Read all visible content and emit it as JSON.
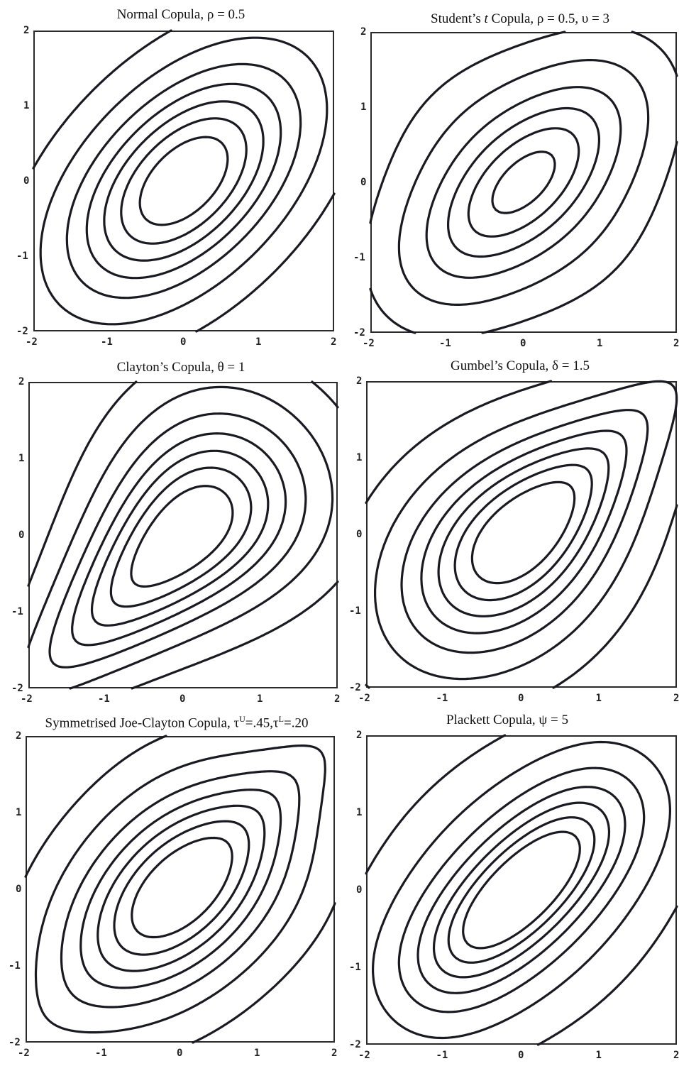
{
  "figure": {
    "panels": [
      {
        "title": "Normal Copula, ρ = 0.5"
      },
      {
        "title_pre": "Student’s ",
        "title_em": "t",
        "title_post": " Copula, ρ = 0.5, υ = 3"
      },
      {
        "title": "Clayton’s Copula, θ = 1"
      },
      {
        "title": "Gumbel’s Copula, δ = 1.5"
      },
      {
        "title_pre": "Symmetrised Joe-Clayton Copula, τ",
        "sup_u": "U",
        "title_mid": "=.45,τ",
        "sup_l": "L",
        "title_post": "=.20"
      },
      {
        "title": "Plackett Copula, ψ = 5"
      }
    ]
  },
  "chart_data": [
    {
      "type": "contour",
      "family": "normal",
      "rho": 0.5,
      "levels": [
        0.01,
        0.03,
        0.055,
        0.08,
        0.105,
        0.13,
        0.155
      ],
      "xlim": [
        -2,
        2
      ],
      "ylim": [
        -2,
        2
      ],
      "xticks": [
        "-2",
        "-1",
        "0",
        "1",
        "2"
      ],
      "yticks": [
        "-2",
        "-1",
        "0",
        "1",
        "2"
      ]
    },
    {
      "type": "contour",
      "family": "student-t",
      "rho": 0.5,
      "nu": 3,
      "levels": [
        0.012,
        0.03,
        0.055,
        0.08,
        0.105,
        0.13,
        0.155
      ],
      "xlim": [
        -2,
        2
      ],
      "ylim": [
        -2,
        2
      ],
      "xticks": [
        "-2",
        "-1",
        "0",
        "1",
        "2"
      ],
      "yticks": [
        "-2",
        "-1",
        "0",
        "1",
        "2"
      ]
    },
    {
      "type": "contour",
      "family": "clayton",
      "theta": 1,
      "levels": [
        0.01,
        0.03,
        0.055,
        0.08,
        0.105,
        0.13,
        0.155
      ],
      "xlim": [
        -2,
        2
      ],
      "ylim": [
        -2,
        2
      ],
      "xticks": [
        "-2",
        "-1",
        "0",
        "1",
        "2"
      ],
      "yticks": [
        "-2",
        "-1",
        "0",
        "1",
        "2"
      ]
    },
    {
      "type": "contour",
      "family": "gumbel",
      "delta": 1.5,
      "levels": [
        0.01,
        0.03,
        0.055,
        0.08,
        0.105,
        0.13,
        0.155
      ],
      "xlim": [
        -2,
        2
      ],
      "ylim": [
        -2,
        2
      ],
      "xticks": [
        "-2",
        "-1",
        "0",
        "1",
        "2"
      ],
      "yticks": [
        "-2",
        "-1",
        "0",
        "1",
        "2"
      ]
    },
    {
      "type": "contour",
      "family": "sjc",
      "tau_upper": 0.45,
      "tau_lower": 0.2,
      "levels": [
        0.01,
        0.03,
        0.055,
        0.08,
        0.105,
        0.13,
        0.155
      ],
      "xlim": [
        -2,
        2
      ],
      "ylim": [
        -2,
        2
      ],
      "xticks": [
        "-2",
        "-1",
        "0",
        "1",
        "2"
      ],
      "yticks": [
        "-2",
        "-1",
        "0",
        "1",
        "2"
      ]
    },
    {
      "type": "contour",
      "family": "plackett",
      "psi": 5,
      "levels": [
        0.01,
        0.03,
        0.055,
        0.08,
        0.105,
        0.13,
        0.155
      ],
      "xlim": [
        -2,
        2
      ],
      "ylim": [
        -2,
        2
      ],
      "xticks": [
        "-2",
        "-1",
        "0",
        "1",
        "2"
      ],
      "yticks": [
        "-2",
        "-1",
        "0",
        "1",
        "2"
      ]
    }
  ]
}
